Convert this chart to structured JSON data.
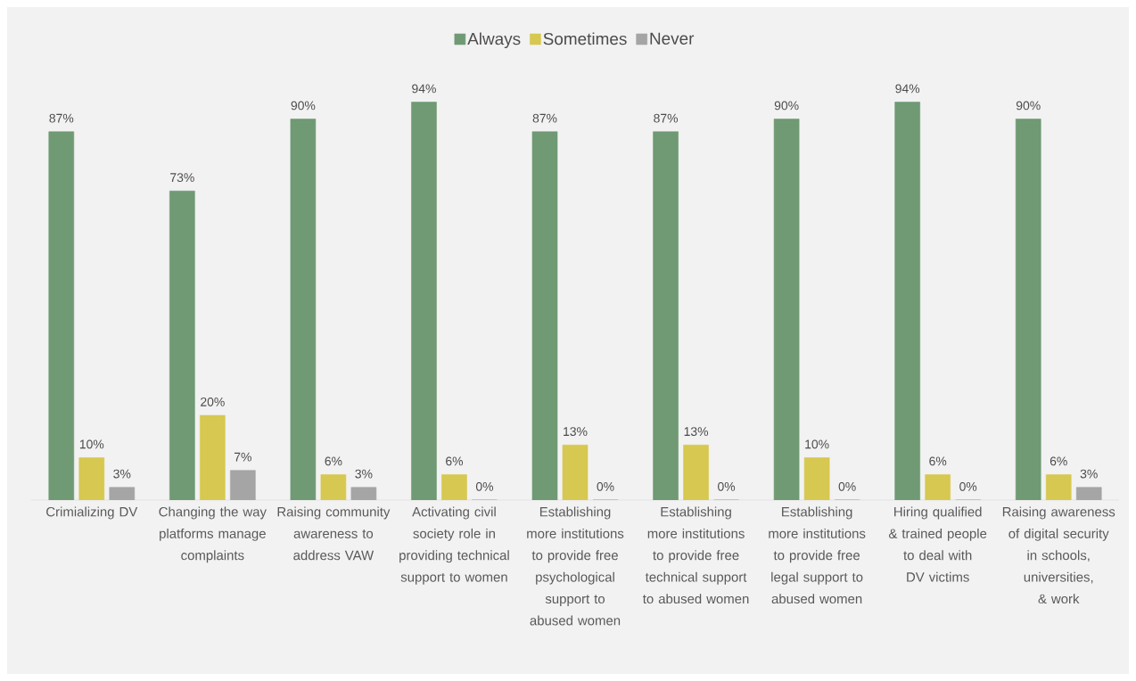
{
  "chart_data": {
    "type": "bar",
    "categories": [
      "Crimializing DV",
      "Changing the way platforms manage complaints",
      "Raising community awareness to address VAW",
      "Activating civil society role in providing technical support to women",
      "Establishing more institutions to provide free psychological support to abused women",
      "Establishing more institutions to provide free technical support to abused women",
      "Establishing more institutions to provide free legal support to abused women",
      "Hiring qualified & trained people to deal with DV victims",
      "Raising awareness of digital security in schools, universities, & work"
    ],
    "series": [
      {
        "name": "Always",
        "color": "#6f9a74",
        "values": [
          87,
          73,
          90,
          94,
          87,
          87,
          90,
          94,
          90
        ],
        "value_labels": [
          "87%",
          "73%",
          "90%",
          "94%",
          "87%",
          "87%",
          "90%",
          "94%",
          "90%"
        ]
      },
      {
        "name": "Sometimes",
        "color": "#d6c850",
        "values": [
          10,
          20,
          6,
          6,
          13,
          13,
          10,
          6,
          6
        ],
        "value_labels": [
          "10%",
          "20%",
          "6%",
          "6%",
          "13%",
          "13%",
          "10%",
          "6%",
          "6%"
        ]
      },
      {
        "name": "Never",
        "color": "#a5a5a5",
        "values": [
          3,
          7,
          3,
          0,
          0,
          0,
          0,
          0,
          3
        ],
        "value_labels": [
          "3%",
          "7%",
          "3%",
          "0%",
          "0%",
          "0%",
          "0%",
          "0%",
          "3%"
        ]
      }
    ],
    "tick_labels": "x",
    "legend": "top"
  }
}
